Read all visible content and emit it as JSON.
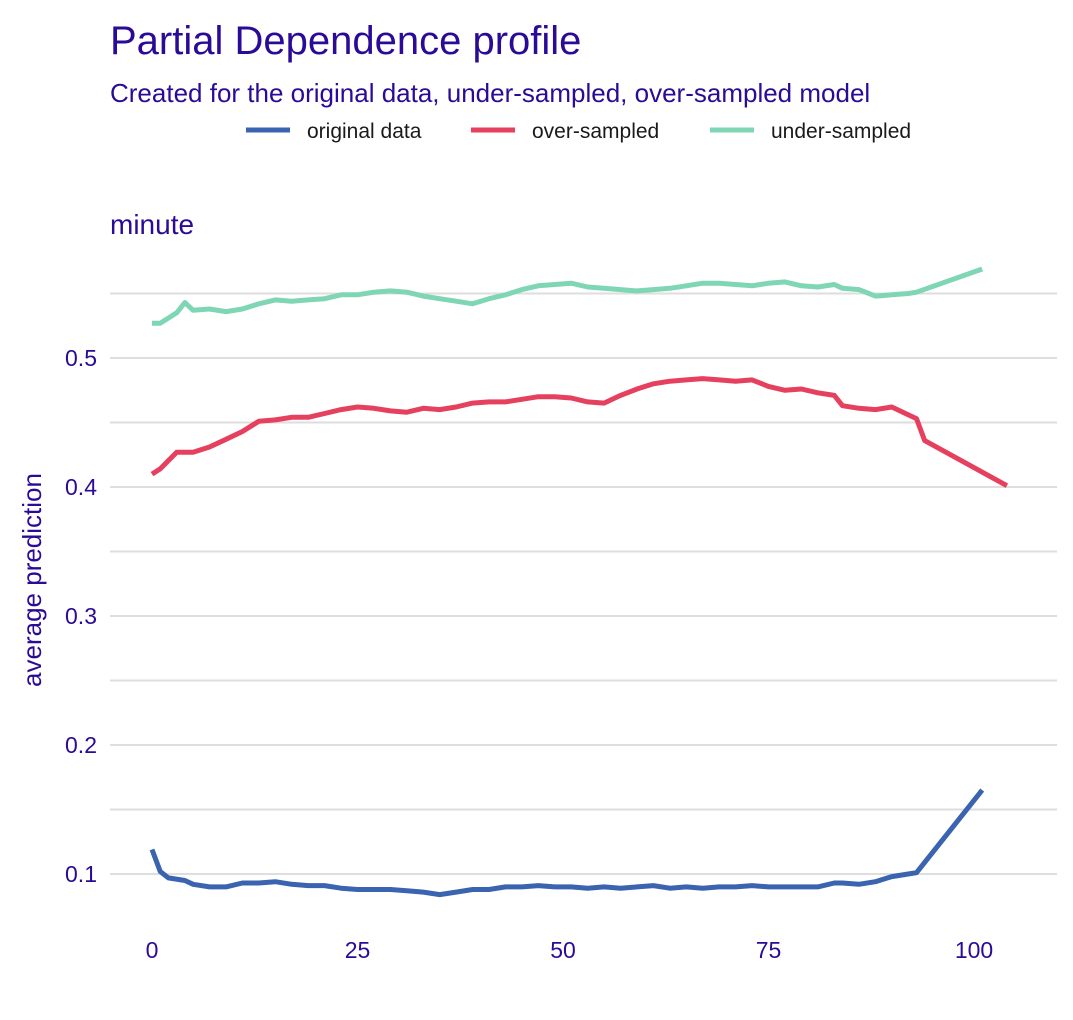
{
  "chart_data": {
    "type": "line",
    "title": "Partial Dependence profile",
    "subtitle": "Created for the original data, under-sampled, over-sampled model",
    "panel_label": "minute",
    "xlabel": "",
    "ylabel": "average prediction",
    "xlim": [
      0,
      104
    ],
    "ylim": [
      0.065,
      0.585
    ],
    "x_ticks": [
      0,
      25,
      50,
      75,
      100
    ],
    "x_tick_labels": [
      "0",
      "25",
      "50",
      "75",
      "100"
    ],
    "y_ticks": [
      0.1,
      0.2,
      0.3,
      0.4,
      0.5
    ],
    "y_tick_labels": [
      "0.1",
      "0.2",
      "0.3",
      "0.4",
      "0.5"
    ],
    "y_minor_gridlines": [
      0.15,
      0.25,
      0.35,
      0.45,
      0.55
    ],
    "grid": "horizontal",
    "legend_position": "top",
    "text_color": "#2a0a96",
    "grid_color": "#dedede",
    "series": [
      {
        "name": "original data",
        "color": "#3a63b0",
        "points": [
          [
            0,
            0.119
          ],
          [
            1,
            0.102
          ],
          [
            2,
            0.097
          ],
          [
            4,
            0.095
          ],
          [
            5,
            0.092
          ],
          [
            7,
            0.09
          ],
          [
            9,
            0.09
          ],
          [
            11,
            0.093
          ],
          [
            13,
            0.093
          ],
          [
            15,
            0.094
          ],
          [
            17,
            0.092
          ],
          [
            19,
            0.091
          ],
          [
            21,
            0.091
          ],
          [
            23,
            0.089
          ],
          [
            25,
            0.088
          ],
          [
            27,
            0.088
          ],
          [
            29,
            0.088
          ],
          [
            31,
            0.087
          ],
          [
            33,
            0.086
          ],
          [
            35,
            0.084
          ],
          [
            37,
            0.086
          ],
          [
            39,
            0.088
          ],
          [
            41,
            0.088
          ],
          [
            43,
            0.09
          ],
          [
            45,
            0.09
          ],
          [
            47,
            0.091
          ],
          [
            49,
            0.09
          ],
          [
            51,
            0.09
          ],
          [
            53,
            0.089
          ],
          [
            55,
            0.09
          ],
          [
            57,
            0.089
          ],
          [
            59,
            0.09
          ],
          [
            61,
            0.091
          ],
          [
            63,
            0.089
          ],
          [
            65,
            0.09
          ],
          [
            67,
            0.089
          ],
          [
            69,
            0.09
          ],
          [
            71,
            0.09
          ],
          [
            73,
            0.091
          ],
          [
            75,
            0.09
          ],
          [
            77,
            0.09
          ],
          [
            79,
            0.09
          ],
          [
            81,
            0.09
          ],
          [
            83,
            0.093
          ],
          [
            84,
            0.093
          ],
          [
            86,
            0.092
          ],
          [
            88,
            0.094
          ],
          [
            90,
            0.098
          ],
          [
            92,
            0.1
          ],
          [
            93,
            0.101
          ],
          [
            101,
            0.165
          ]
        ]
      },
      {
        "name": "over-sampled",
        "color": "#e5405e",
        "points": [
          [
            0,
            0.41
          ],
          [
            1,
            0.414
          ],
          [
            3,
            0.427
          ],
          [
            5,
            0.427
          ],
          [
            7,
            0.431
          ],
          [
            9,
            0.437
          ],
          [
            11,
            0.443
          ],
          [
            13,
            0.451
          ],
          [
            15,
            0.452
          ],
          [
            17,
            0.454
          ],
          [
            19,
            0.454
          ],
          [
            21,
            0.457
          ],
          [
            23,
            0.46
          ],
          [
            25,
            0.462
          ],
          [
            27,
            0.461
          ],
          [
            29,
            0.459
          ],
          [
            31,
            0.458
          ],
          [
            33,
            0.461
          ],
          [
            35,
            0.46
          ],
          [
            37,
            0.462
          ],
          [
            39,
            0.465
          ],
          [
            41,
            0.466
          ],
          [
            43,
            0.466
          ],
          [
            45,
            0.468
          ],
          [
            47,
            0.47
          ],
          [
            49,
            0.47
          ],
          [
            51,
            0.469
          ],
          [
            53,
            0.466
          ],
          [
            55,
            0.465
          ],
          [
            57,
            0.471
          ],
          [
            59,
            0.476
          ],
          [
            61,
            0.48
          ],
          [
            63,
            0.482
          ],
          [
            65,
            0.483
          ],
          [
            67,
            0.484
          ],
          [
            69,
            0.483
          ],
          [
            71,
            0.482
          ],
          [
            73,
            0.483
          ],
          [
            75,
            0.478
          ],
          [
            77,
            0.475
          ],
          [
            79,
            0.476
          ],
          [
            81,
            0.473
          ],
          [
            83,
            0.471
          ],
          [
            84,
            0.463
          ],
          [
            86,
            0.461
          ],
          [
            88,
            0.46
          ],
          [
            90,
            0.462
          ],
          [
            92,
            0.456
          ],
          [
            93,
            0.453
          ],
          [
            94,
            0.436
          ],
          [
            104,
            0.401
          ]
        ]
      },
      {
        "name": "under-sampled",
        "color": "#7fd6b4",
        "points": [
          [
            0,
            0.527
          ],
          [
            1,
            0.527
          ],
          [
            3,
            0.535
          ],
          [
            4,
            0.543
          ],
          [
            5,
            0.537
          ],
          [
            7,
            0.538
          ],
          [
            9,
            0.536
          ],
          [
            11,
            0.538
          ],
          [
            13,
            0.542
          ],
          [
            15,
            0.545
          ],
          [
            17,
            0.544
          ],
          [
            19,
            0.545
          ],
          [
            21,
            0.546
          ],
          [
            23,
            0.549
          ],
          [
            25,
            0.549
          ],
          [
            27,
            0.551
          ],
          [
            29,
            0.552
          ],
          [
            31,
            0.551
          ],
          [
            33,
            0.548
          ],
          [
            35,
            0.546
          ],
          [
            37,
            0.544
          ],
          [
            39,
            0.542
          ],
          [
            41,
            0.546
          ],
          [
            43,
            0.549
          ],
          [
            45,
            0.553
          ],
          [
            47,
            0.556
          ],
          [
            49,
            0.557
          ],
          [
            51,
            0.558
          ],
          [
            53,
            0.555
          ],
          [
            55,
            0.554
          ],
          [
            57,
            0.553
          ],
          [
            59,
            0.552
          ],
          [
            61,
            0.553
          ],
          [
            63,
            0.554
          ],
          [
            65,
            0.556
          ],
          [
            67,
            0.558
          ],
          [
            69,
            0.558
          ],
          [
            71,
            0.557
          ],
          [
            73,
            0.556
          ],
          [
            75,
            0.558
          ],
          [
            77,
            0.559
          ],
          [
            79,
            0.556
          ],
          [
            81,
            0.555
          ],
          [
            83,
            0.557
          ],
          [
            84,
            0.554
          ],
          [
            86,
            0.553
          ],
          [
            88,
            0.548
          ],
          [
            90,
            0.549
          ],
          [
            92,
            0.55
          ],
          [
            93,
            0.551
          ],
          [
            101,
            0.569
          ]
        ]
      }
    ]
  }
}
